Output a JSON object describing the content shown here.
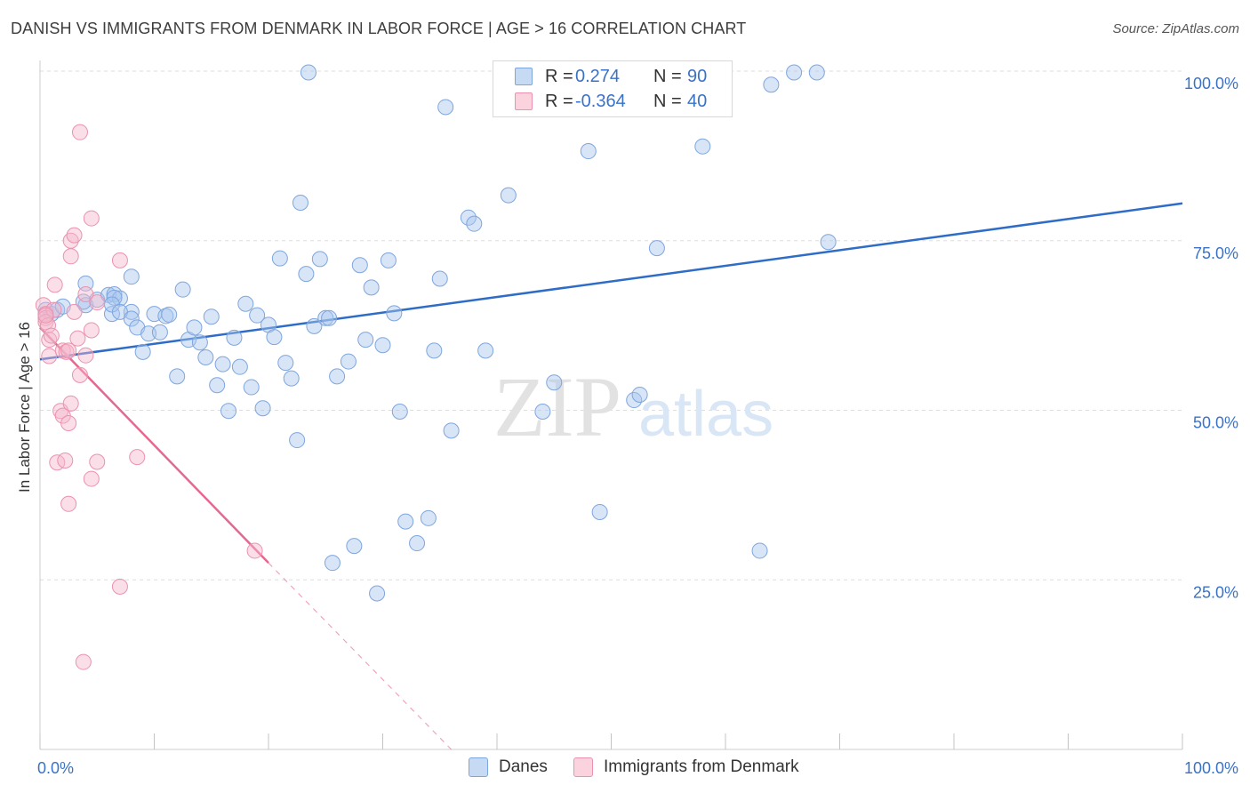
{
  "header": {
    "title": "DANISH VS IMMIGRANTS FROM DENMARK IN LABOR FORCE | AGE > 16 CORRELATION CHART",
    "source": "Source: ZipAtlas.com"
  },
  "watermark": {
    "zip": "ZIP",
    "atlas": "atlas"
  },
  "legend": {
    "rows": [
      {
        "r_label": "R =",
        "r_value": "0.274",
        "n_label": "N =",
        "n_value": "90",
        "color": "#a9c6ee"
      },
      {
        "r_label": "R =",
        "r_value": "-0.364",
        "n_label": "N =",
        "n_value": "40",
        "color": "#f5b8cb"
      }
    ]
  },
  "bottom_legend": {
    "items": [
      {
        "label": "Danes",
        "color": "#a9c6ee"
      },
      {
        "label": "Immigrants from Denmark",
        "color": "#f5b8cb"
      }
    ]
  },
  "chart_data": {
    "type": "scatter",
    "title": "DANISH VS IMMIGRANTS FROM DENMARK IN LABOR FORCE | AGE > 16 CORRELATION CHART",
    "xlabel": "",
    "ylabel": "In Labor Force | Age > 16",
    "xlim": [
      0,
      100
    ],
    "ylim": [
      0,
      100
    ],
    "x_tick_labels": [
      {
        "value": 0,
        "label": "0.0%"
      },
      {
        "value": 100,
        "label": "100.0%"
      }
    ],
    "y_tick_labels": [
      {
        "value": 25,
        "label": "25.0%"
      },
      {
        "value": 50,
        "label": "50.0%"
      },
      {
        "value": 75,
        "label": "75.0%"
      },
      {
        "value": 100,
        "label": "100.0%"
      }
    ],
    "x_minor_ticks": [
      0,
      10,
      20,
      30,
      40,
      50,
      60,
      70,
      80,
      90,
      100
    ],
    "grid": true,
    "colors": {
      "danes_fill": "rgba(169,198,238,0.45)",
      "danes_stroke": "#7ea6de",
      "danes_line": "#2e6cc7",
      "imm_fill": "rgba(245,184,203,0.45)",
      "imm_stroke": "#ec92ae",
      "imm_line": "#e5688f",
      "axis_label": "#3a72c8",
      "grid": "#dedede"
    },
    "series": [
      {
        "name": "Danes",
        "r": 0.274,
        "n": 90,
        "trend": {
          "x0": 0,
          "y0": 57.5,
          "x1": 100,
          "y1": 80.5
        },
        "points": [
          [
            0.5,
            64.8
          ],
          [
            1,
            64.2
          ],
          [
            1.5,
            64.8
          ],
          [
            2,
            65.3
          ],
          [
            4,
            65.5
          ],
          [
            3.8,
            66.0
          ],
          [
            4,
            68.7
          ],
          [
            5,
            66.3
          ],
          [
            6,
            67.0
          ],
          [
            6.5,
            67.1
          ],
          [
            7,
            66.5
          ],
          [
            6.3,
            64.2
          ],
          [
            6.5,
            66.6
          ],
          [
            6.3,
            65.6
          ],
          [
            8,
            64.5
          ],
          [
            7,
            64.5
          ],
          [
            8,
            63.5
          ],
          [
            8.5,
            62.2
          ],
          [
            9,
            58.6
          ],
          [
            8,
            69.7
          ],
          [
            9.5,
            61.3
          ],
          [
            10,
            64.2
          ],
          [
            10.5,
            61.5
          ],
          [
            11,
            63.9
          ],
          [
            11.3,
            64.1
          ],
          [
            12,
            55.0
          ],
          [
            12.5,
            67.8
          ],
          [
            13,
            60.4
          ],
          [
            13.5,
            62.2
          ],
          [
            14,
            60.0
          ],
          [
            14.5,
            57.8
          ],
          [
            15,
            63.8
          ],
          [
            15.5,
            53.7
          ],
          [
            16,
            56.8
          ],
          [
            16.5,
            49.9
          ],
          [
            17,
            60.7
          ],
          [
            17.5,
            56.4
          ],
          [
            18,
            65.7
          ],
          [
            18.5,
            53.4
          ],
          [
            19,
            64.0
          ],
          [
            19.5,
            50.3
          ],
          [
            20,
            62.6
          ],
          [
            20.5,
            60.8
          ],
          [
            21,
            72.4
          ],
          [
            21.5,
            57.0
          ],
          [
            22,
            54.7
          ],
          [
            22.5,
            45.6
          ],
          [
            22.8,
            80.6
          ],
          [
            23.3,
            70.1
          ],
          [
            24,
            62.4
          ],
          [
            24.5,
            72.3
          ],
          [
            25,
            63.6
          ],
          [
            25.3,
            63.6
          ],
          [
            26,
            55.0
          ],
          [
            27,
            57.2
          ],
          [
            28,
            71.4
          ],
          [
            28.5,
            60.4
          ],
          [
            29,
            68.1
          ],
          [
            30,
            59.6
          ],
          [
            30.5,
            72.1
          ],
          [
            31,
            64.3
          ],
          [
            31.5,
            49.8
          ],
          [
            32,
            33.6
          ],
          [
            33,
            30.4
          ],
          [
            34,
            34.1
          ],
          [
            34.5,
            58.8
          ],
          [
            35,
            69.4
          ],
          [
            35.5,
            94.7
          ],
          [
            36,
            47.0
          ],
          [
            37.5,
            78.4
          ],
          [
            38,
            77.5
          ],
          [
            39,
            58.8
          ],
          [
            41,
            81.7
          ],
          [
            44,
            49.8
          ],
          [
            45,
            54.1
          ],
          [
            48,
            88.2
          ],
          [
            49,
            35.0
          ],
          [
            52,
            51.5
          ],
          [
            52.5,
            52.3
          ],
          [
            54,
            73.9
          ],
          [
            58,
            88.9
          ],
          [
            63,
            29.3
          ],
          [
            64,
            98.0
          ],
          [
            66,
            99.8
          ],
          [
            68,
            99.8
          ],
          [
            69,
            74.8
          ],
          [
            27.5,
            30.0
          ],
          [
            25.6,
            27.5
          ],
          [
            29.5,
            23.0
          ],
          [
            23.5,
            99.8
          ]
        ]
      },
      {
        "name": "Immigrants from Denmark",
        "r": -0.364,
        "n": 40,
        "trend": {
          "x0": 0,
          "y0": 62.2,
          "x1": 20,
          "y1": 27.5,
          "dash_to_x": 36,
          "dash_to_y": 0
        },
        "points": [
          [
            0.3,
            65.5
          ],
          [
            0.5,
            64.2
          ],
          [
            0.5,
            63.6
          ],
          [
            0.5,
            63.0
          ],
          [
            0.7,
            62.5
          ],
          [
            0.8,
            58.0
          ],
          [
            0.8,
            60.4
          ],
          [
            1,
            61.0
          ],
          [
            1.2,
            64.8
          ],
          [
            1.3,
            68.5
          ],
          [
            1.5,
            42.3
          ],
          [
            1.8,
            49.9
          ],
          [
            2,
            49.2
          ],
          [
            2,
            58.8
          ],
          [
            2.2,
            42.6
          ],
          [
            2.3,
            58.6
          ],
          [
            2.5,
            36.2
          ],
          [
            2.5,
            48.1
          ],
          [
            2.5,
            58.8
          ],
          [
            2.7,
            75.0
          ],
          [
            2.7,
            72.7
          ],
          [
            2.7,
            51.0
          ],
          [
            3,
            75.8
          ],
          [
            3,
            64.5
          ],
          [
            3.3,
            60.6
          ],
          [
            3.5,
            91.0
          ],
          [
            3.5,
            55.2
          ],
          [
            3.8,
            12.9
          ],
          [
            4,
            58.1
          ],
          [
            4,
            67.1
          ],
          [
            4.5,
            39.9
          ],
          [
            4.5,
            61.8
          ],
          [
            4.5,
            78.3
          ],
          [
            5,
            65.9
          ],
          [
            5,
            42.4
          ],
          [
            7,
            72.1
          ],
          [
            8.5,
            43.1
          ],
          [
            7,
            24.0
          ],
          [
            18.8,
            29.3
          ],
          [
            0.5,
            64.0
          ]
        ]
      }
    ]
  }
}
